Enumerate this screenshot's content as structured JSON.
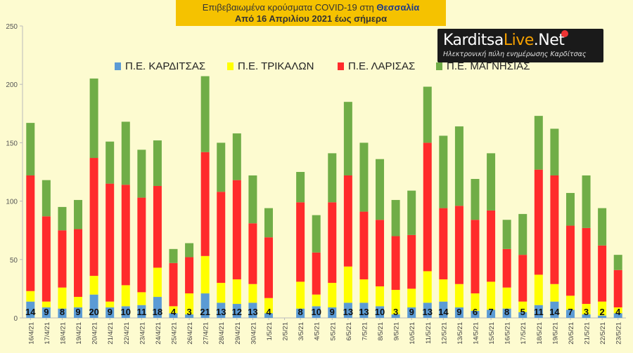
{
  "logo": {
    "part1": "Karditsa",
    "part2": "Live",
    "part3": ".Net",
    "tagline": "Ηλεκτρονική πύλη ενημέρωσης Καρδίτσας"
  },
  "chart_data": {
    "type": "bar",
    "stacked": true,
    "title_prefix": "Επιβεβαιωμένα κρούσματα COVID-19 στη ",
    "title_region": "Θεσσαλία",
    "subtitle": "Από 16 Απριλίου 2021 έως σήμερα",
    "ylim": [
      0,
      250
    ],
    "yticks": [
      0,
      50,
      100,
      150,
      200,
      250
    ],
    "grid": false,
    "legend_position": "top",
    "categories": [
      "16/4/21",
      "17/4/21",
      "18/4/21",
      "19/4/21",
      "20/4/21",
      "21/4/21",
      "22/4/21",
      "23/4/21",
      "24/4/21",
      "25/4/21",
      "26/4/21",
      "27/4/21",
      "28/4/21",
      "29/4/21",
      "30/4/21",
      "1/5/21",
      "2/5/21",
      "3/5/21",
      "4/5/21",
      "5/5/21",
      "6/5/21",
      "7/5/21",
      "8/5/21",
      "9/5/21",
      "10/5/21",
      "11/5/21",
      "12/5/21",
      "13/5/21",
      "14/5/21",
      "15/5/21",
      "16/5/21",
      "17/5/21",
      "18/5/21",
      "19/5/21",
      "20/5/21",
      "21/5/21",
      "22/5/21",
      "23/5/21"
    ],
    "series": [
      {
        "name": "Π.Ε. ΚΑΡΔΙΤΣΑΣ",
        "color": "#5b9bd5",
        "values": [
          14,
          9,
          8,
          9,
          20,
          9,
          10,
          11,
          18,
          4,
          3,
          21,
          13,
          12,
          13,
          4,
          0,
          8,
          10,
          9,
          13,
          13,
          10,
          3,
          9,
          13,
          14,
          9,
          6,
          7,
          8,
          5,
          11,
          14,
          7,
          3,
          2,
          4
        ]
      },
      {
        "name": "Π.Ε. ΤΡΙΚΑΛΩΝ",
        "color": "#ffff00",
        "values": [
          9,
          5,
          18,
          9,
          16,
          5,
          18,
          11,
          25,
          6,
          18,
          32,
          17,
          21,
          16,
          13,
          0,
          23,
          10,
          21,
          31,
          20,
          17,
          21,
          16,
          27,
          19,
          20,
          15,
          24,
          18,
          9,
          26,
          15,
          12,
          9,
          12,
          5
        ]
      },
      {
        "name": "Π.Ε. ΛΑΡΙΣΑΣ",
        "color": "#ff2b2b",
        "values": [
          99,
          73,
          49,
          58,
          101,
          101,
          86,
          81,
          70,
          37,
          31,
          89,
          78,
          85,
          52,
          52,
          0,
          68,
          36,
          69,
          78,
          58,
          57,
          46,
          46,
          110,
          61,
          67,
          63,
          61,
          33,
          40,
          90,
          93,
          60,
          65,
          48,
          32
        ]
      },
      {
        "name": "Π.Ε. ΜΑΓΝΗΣΙΑΣ",
        "color": "#70ad47",
        "values": [
          45,
          31,
          20,
          25,
          68,
          36,
          54,
          41,
          39,
          12,
          12,
          65,
          42,
          40,
          41,
          25,
          0,
          26,
          32,
          42,
          63,
          59,
          52,
          31,
          38,
          48,
          62,
          68,
          35,
          49,
          25,
          35,
          46,
          40,
          28,
          45,
          32,
          13
        ]
      }
    ]
  }
}
